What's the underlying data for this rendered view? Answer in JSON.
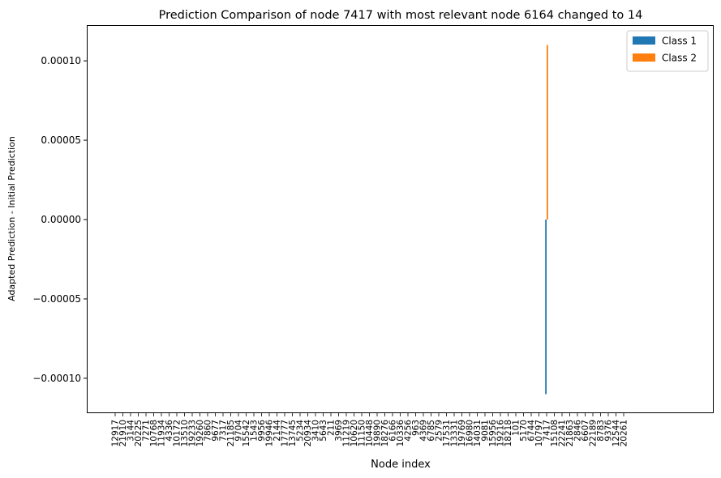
{
  "chart_data": {
    "type": "bar",
    "title": "Prediction Comparison of node 7417 with most relevant node 6164 changed to 14",
    "xlabel": "Node index",
    "ylabel": "Adapted Prediction - Initial Prediction",
    "ylim": [
      -0.000122,
      0.000122
    ],
    "yticks": [
      -0.0001,
      -5e-05,
      0.0,
      5e-05,
      0.0001
    ],
    "ytick_labels": [
      "−0.00010",
      "−0.00005",
      "0.00000",
      "0.00005",
      "0.00010"
    ],
    "grid": false,
    "legend_position": "top-right",
    "categories": [
      "12917",
      "21910",
      "3144",
      "20225",
      "7271",
      "10768",
      "11934",
      "4336",
      "10172",
      "13510",
      "19233",
      "19260",
      "7860",
      "9677",
      "7317",
      "21185",
      "9704",
      "15542",
      "1543",
      "9956",
      "19946",
      "2144",
      "17777",
      "13745",
      "5234",
      "20934",
      "3410",
      "5643",
      "211",
      "3969",
      "11219",
      "10620",
      "11150",
      "10448",
      "19890",
      "18276",
      "6166",
      "10336",
      "4256",
      "963",
      "4369",
      "6785",
      "2579",
      "17531",
      "13331",
      "19769",
      "16980",
      "14031",
      "9081",
      "15956",
      "19216",
      "18218",
      "101",
      "5170",
      "6744",
      "10797",
      "7417",
      "15108",
      "22241",
      "21863",
      "2846",
      "6607",
      "22189",
      "8783",
      "9376",
      "12544",
      "20261"
    ],
    "series": [
      {
        "name": "Class 1",
        "color": "#1f77b4",
        "values": [
          0,
          0,
          0,
          0,
          0,
          0,
          0,
          0,
          0,
          0,
          0,
          0,
          0,
          0,
          0,
          0,
          0,
          0,
          0,
          0,
          0,
          0,
          0,
          0,
          0,
          0,
          0,
          0,
          0,
          0,
          0,
          0,
          0,
          0,
          0,
          0,
          0,
          0,
          0,
          0,
          0,
          0,
          0,
          0,
          0,
          0,
          0,
          0,
          0,
          0,
          0,
          0,
          0,
          0,
          0,
          0,
          -0.00011,
          0,
          0,
          0,
          0,
          0,
          0,
          0,
          0,
          0,
          0
        ]
      },
      {
        "name": "Class 2",
        "color": "#ff7f0e",
        "values": [
          0,
          0,
          0,
          0,
          0,
          0,
          0,
          0,
          0,
          0,
          0,
          0,
          0,
          0,
          0,
          0,
          0,
          0,
          0,
          0,
          0,
          0,
          0,
          0,
          0,
          0,
          0,
          0,
          0,
          0,
          0,
          0,
          0,
          0,
          0,
          0,
          0,
          0,
          0,
          0,
          0,
          0,
          0,
          0,
          0,
          0,
          0,
          0,
          0,
          0,
          0,
          0,
          0,
          0,
          0,
          0,
          0.00011,
          0,
          0,
          0,
          0,
          0,
          0,
          0,
          0,
          0,
          0
        ]
      }
    ]
  }
}
